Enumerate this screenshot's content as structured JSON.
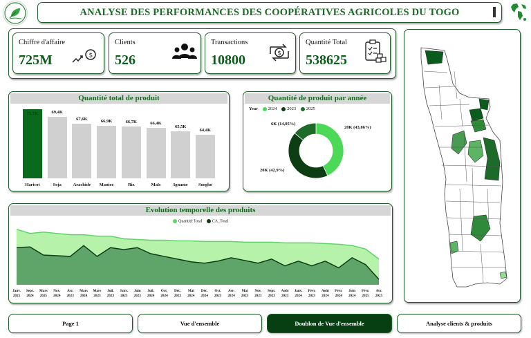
{
  "header": {
    "title": "ANALYSE DES PERFORMANCES DES COOPÉRATIVES AGRICOLES DU TOGO"
  },
  "kpis": [
    {
      "label": "Chiffre d'affaire",
      "value": "725M",
      "icon": "money-growth-icon"
    },
    {
      "label": "Clients",
      "value": "526",
      "icon": "users-group-icon"
    },
    {
      "label": "Transactions",
      "value": "10800",
      "icon": "money-exchange-icon"
    },
    {
      "label": "Quantité Total",
      "value": "538625",
      "icon": "inventory-clipboard-icon"
    }
  ],
  "bar_panel": {
    "title": "Quantité total de produit"
  },
  "donut_panel": {
    "title": "Quantité de produit par année",
    "legend_title": "Year",
    "labels": {
      "a": "20K (43,06%)",
      "b": "6K (14,05%)",
      "c": "20K (42,9%)"
    }
  },
  "line_panel": {
    "title": "Evolution temporelle des produits",
    "legend": [
      "Quantité Total",
      "CA_Total"
    ]
  },
  "nav": {
    "page1": "Page 1",
    "overview": "Vue d'ensemble",
    "duplicate": "Doublon de Vue d'ensemble",
    "clients": "Analyse clients & produits"
  },
  "colors": {
    "dark": "#0a5c1c",
    "mid": "#0f4a16",
    "light": "#4cd957",
    "area_light": "#b6f2aa",
    "area_dark": "#5fa56a"
  },
  "chart_data": [
    {
      "type": "bar",
      "title": "Quantité total de produit",
      "categories": [
        "Haricot",
        "Soja",
        "Arachide",
        "Manioc",
        "Riz",
        "Maïs",
        "Igname",
        "Sorgho"
      ],
      "values": [
        71.7,
        69.4,
        67.6,
        66.9,
        66.7,
        66.4,
        65.5,
        64.4
      ],
      "value_labels": [
        "71,7K",
        "69,4K",
        "67,6K",
        "66,9K",
        "66,7K",
        "66,4K",
        "65,5K",
        "64,4K"
      ],
      "unit": "K"
    },
    {
      "type": "pie",
      "title": "Quantité de produit par année",
      "legend_title": "Year",
      "series": [
        {
          "name": "2024",
          "value": 20,
          "percent": 43.06,
          "color": "#4cd957"
        },
        {
          "name": "2023",
          "value": 20,
          "percent": 42.9,
          "color": "#0d3d13"
        },
        {
          "name": "2025",
          "value": 6,
          "percent": 14.05,
          "color": "#1c6b28"
        }
      ]
    },
    {
      "type": "area",
      "title": "Evolution temporelle des produits",
      "x": [
        "Janv. 2025",
        "Sept. 2024",
        "Mars 2025",
        "Nov. 2024",
        "Avr. 2023",
        "Mars 2024",
        "Mars 2023",
        "Juil. 2023",
        "Janv. 2023",
        "Juin 2023",
        "Juil. 2024",
        "Oct. 2024",
        "Déc. 2023",
        "Mai 2024",
        "Déc. 2024",
        "Oct. 2023",
        "Avr. 2024",
        "Mai 2023",
        "Nov. 2023",
        "Sept. 2023",
        "Août 2023",
        "Janv. 2024",
        "Févr. 2023",
        "Août 2024",
        "Févr. 2024",
        "Juin 2024",
        "Févr. 2025",
        "Avr. 2025"
      ],
      "series": [
        {
          "name": "Quantité Total",
          "values": [
            82,
            76,
            78,
            76,
            74,
            74,
            72,
            72,
            68,
            67,
            66,
            66,
            65,
            65,
            64,
            64,
            64,
            63,
            63,
            63,
            62,
            62,
            62,
            61,
            60,
            58,
            53,
            38
          ]
        },
        {
          "name": "CA_Total",
          "values": [
            55,
            56,
            44,
            43,
            42,
            58,
            42,
            55,
            52,
            55,
            46,
            42,
            38,
            34,
            32,
            35,
            40,
            36,
            32,
            38,
            28,
            35,
            28,
            35,
            25,
            40,
            30,
            8
          ]
        }
      ]
    }
  ]
}
